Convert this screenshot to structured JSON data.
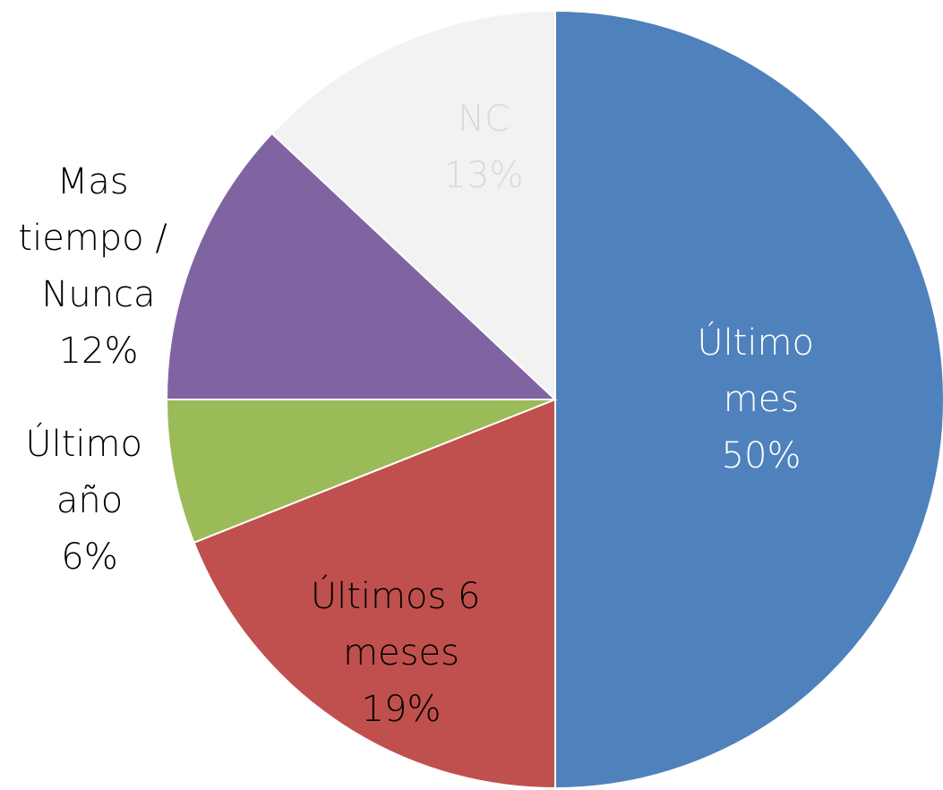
{
  "chart_data": {
    "type": "pie",
    "categories": [
      "Último mes",
      "Últimos 6 meses",
      "Último año",
      "Mas tiempo / Nunca",
      "NC"
    ],
    "values": [
      50,
      19,
      6,
      12,
      13
    ],
    "value_labels": [
      "50%",
      "19%",
      "6%",
      "12%",
      "13%"
    ],
    "colors": [
      "#4f81bd",
      "#c0504d",
      "#9bbb59",
      "#8064a2",
      "#f2f2f2"
    ]
  }
}
